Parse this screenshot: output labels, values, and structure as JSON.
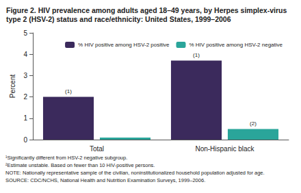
{
  "chart_data": {
    "type": "bar",
    "title": "Figure 2. HIV prevalence among adults aged 18–49 years, by Herpes simplex-virus type 2 (HSV-2) status and race/ethnicity: United States, 1999–2006",
    "y_label": "Percent",
    "categories": [
      "Total",
      "Non-Hispanic black"
    ],
    "series": [
      {
        "name": "% HIV positive among HSV-2 positive",
        "color": "#3b2a5c",
        "values": [
          2.0,
          3.7
        ]
      },
      {
        "name": "% HIV positive among HSV-2 negative",
        "color": "#2aa59a",
        "values": [
          0.1,
          0.5
        ]
      }
    ],
    "annotations": [
      {
        "text": "(1)",
        "series": "% HIV positive among HSV-2 positive",
        "category": "Total"
      },
      {
        "text": "(1)",
        "series": "% HIV positive among HSV-2 positive",
        "category": "Non-Hispanic black"
      },
      {
        "text": "(2)",
        "series": "% HIV positive among HSV-2 negative",
        "category": "Non-Hispanic black"
      }
    ],
    "footnotes": [
      "¹Significantly different from HSV-2 negative subgroup.",
      "²Estimate unstable. Based on fewer than 10 HIV-positive persons.",
      "NOTE: Nationally representative sample of the civilian, noninstitutionalized household population adjusted for age.",
      "SOURCE: CDC/NCHS, National Health and Nutrition Examination Surveys, 1999–2006."
    ],
    "ylim": [
      0,
      5
    ],
    "yticks": [
      0,
      1,
      2,
      3,
      4,
      5
    ],
    "grid": false,
    "legend": "upper right"
  }
}
